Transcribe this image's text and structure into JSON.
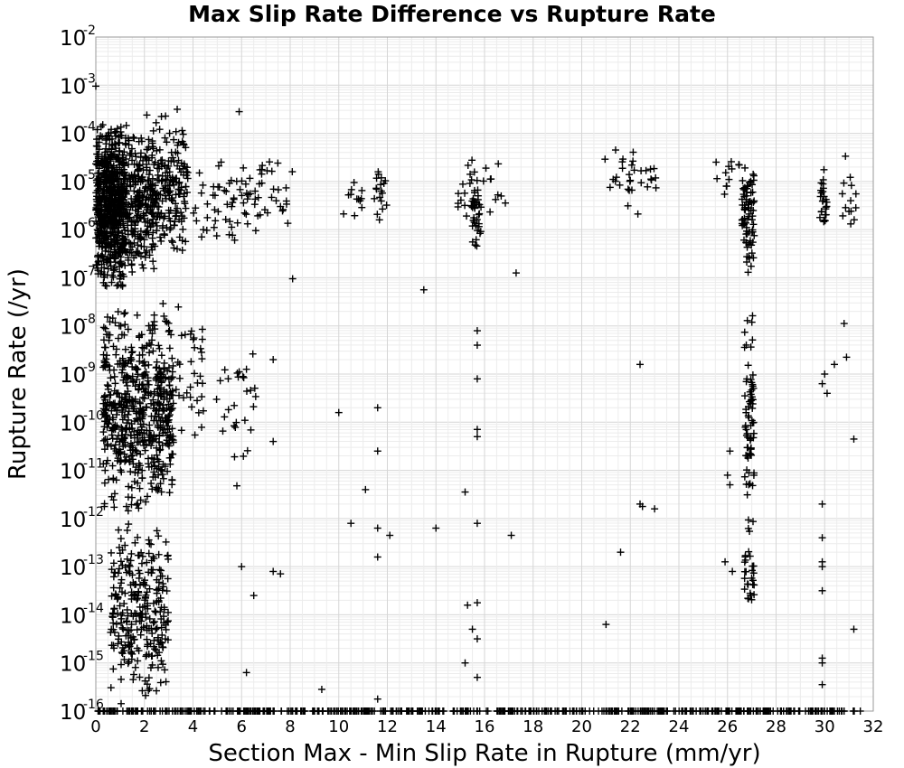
{
  "chart_data": {
    "type": "scatter",
    "title": "Max Slip Rate Difference vs Rupture Rate",
    "xlabel": "Section Max - Min Slip Rate in Rupture (mm/yr)",
    "ylabel": "Rupture Rate (/yr)",
    "xlim": [
      0,
      32
    ],
    "ylim": [
      1e-16,
      0.01
    ],
    "y_scale": "log",
    "x_ticks": [
      0,
      2,
      4,
      6,
      8,
      10,
      12,
      14,
      16,
      18,
      20,
      22,
      24,
      26,
      28,
      30,
      32
    ],
    "y_ticks": [
      {
        "base": "10",
        "exp": "-2"
      },
      {
        "base": "10",
        "exp": "-3"
      },
      {
        "base": "10",
        "exp": "-4"
      },
      {
        "base": "10",
        "exp": "-5"
      },
      {
        "base": "10",
        "exp": "-6"
      },
      {
        "base": "10",
        "exp": "-7"
      },
      {
        "base": "10",
        "exp": "-8"
      },
      {
        "base": "10",
        "exp": "-9"
      },
      {
        "base": "10",
        "exp": "-10"
      },
      {
        "base": "10",
        "exp": "-11"
      },
      {
        "base": "10",
        "exp": "-12"
      },
      {
        "base": "10",
        "exp": "-13"
      },
      {
        "base": "10",
        "exp": "-14"
      },
      {
        "base": "10",
        "exp": "-15"
      },
      {
        "base": "10",
        "exp": "-16"
      }
    ],
    "grid": true,
    "marker": "plus",
    "marker_color": "#000000",
    "clusters": [
      {
        "x": [
          0.0,
          1.2
        ],
        "log_y": [
          -7.3,
          -3.7
        ],
        "count": 650
      },
      {
        "x": [
          1.2,
          2.4
        ],
        "log_y": [
          -7.0,
          -3.8
        ],
        "count": 260
      },
      {
        "x": [
          2.4,
          3.8
        ],
        "log_y": [
          -6.6,
          -3.6
        ],
        "count": 170
      },
      {
        "x": [
          0.3,
          3.2
        ],
        "log_y": [
          -12.0,
          -7.5
        ],
        "count": 600
      },
      {
        "x": [
          0.6,
          3.0
        ],
        "log_y": [
          -15.9,
          -12.0
        ],
        "count": 280
      },
      {
        "x": [
          4.0,
          5.0
        ],
        "log_y": [
          -6.3,
          -4.7
        ],
        "count": 18
      },
      {
        "x": [
          5.0,
          6.8
        ],
        "log_y": [
          -6.3,
          -4.5
        ],
        "count": 45
      },
      {
        "x": [
          6.8,
          8.2
        ],
        "log_y": [
          -6.0,
          -4.2
        ],
        "count": 22
      },
      {
        "x": [
          3.3,
          4.6
        ],
        "log_y": [
          -11.0,
          -7.2
        ],
        "count": 35
      },
      {
        "x": [
          4.9,
          6.6
        ],
        "log_y": [
          -11.5,
          -7.8
        ],
        "count": 28
      },
      {
        "x": [
          9.9,
          11.0
        ],
        "log_y": [
          -5.9,
          -4.8
        ],
        "count": 12
      },
      {
        "x": [
          11.4,
          12.1
        ],
        "log_y": [
          -6.0,
          -4.2
        ],
        "count": 18
      },
      {
        "x": [
          14.8,
          15.6
        ],
        "log_y": [
          -5.9,
          -4.2
        ],
        "count": 18
      },
      {
        "x": [
          15.5,
          15.9
        ],
        "log_y": [
          -6.6,
          -4.7
        ],
        "count": 35
      },
      {
        "x": [
          15.9,
          16.9
        ],
        "log_y": [
          -5.8,
          -4.2
        ],
        "count": 10
      },
      {
        "x": [
          20.9,
          21.7
        ],
        "log_y": [
          -5.3,
          -4.1
        ],
        "count": 10
      },
      {
        "x": [
          21.9,
          23.1
        ],
        "log_y": [
          -5.7,
          -4.2
        ],
        "count": 22
      },
      {
        "x": [
          25.4,
          26.6
        ],
        "log_y": [
          -5.3,
          -4.3
        ],
        "count": 12
      },
      {
        "x": [
          26.6,
          27.1
        ],
        "log_y": [
          -7.0,
          -4.6
        ],
        "count": 80
      },
      {
        "x": [
          26.7,
          27.1
        ],
        "log_y": [
          -11.8,
          -7.5
        ],
        "count": 70
      },
      {
        "x": [
          26.7,
          27.1
        ],
        "log_y": [
          -14.5,
          -11.8
        ],
        "count": 30
      },
      {
        "x": [
          29.8,
          30.1
        ],
        "log_y": [
          -6.1,
          -4.7
        ],
        "count": 25
      },
      {
        "x": [
          30.7,
          31.3
        ],
        "log_y": [
          -6.4,
          -4.3
        ],
        "count": 14
      }
    ],
    "points": [
      [
        0.0,
        -3.02
      ],
      [
        3.35,
        -3.5
      ],
      [
        5.9,
        -3.55
      ],
      [
        2.1,
        -3.62
      ],
      [
        2.7,
        -3.65
      ],
      [
        17.3,
        -6.9
      ],
      [
        8.1,
        -7.02
      ],
      [
        13.5,
        -7.25
      ],
      [
        22.4,
        -8.8
      ],
      [
        10.0,
        -9.8
      ],
      [
        11.6,
        -9.7
      ],
      [
        15.7,
        -9.1
      ],
      [
        15.7,
        -8.1
      ],
      [
        15.7,
        -8.4
      ],
      [
        11.6,
        -10.6
      ],
      [
        15.7,
        -10.3
      ],
      [
        15.7,
        -10.15
      ],
      [
        11.1,
        -11.4
      ],
      [
        15.2,
        -11.45
      ],
      [
        10.5,
        -12.1
      ],
      [
        11.6,
        -12.2
      ],
      [
        12.1,
        -12.35
      ],
      [
        14.0,
        -12.2
      ],
      [
        15.7,
        -12.1
      ],
      [
        17.1,
        -12.35
      ],
      [
        22.4,
        -11.7
      ],
      [
        22.5,
        -11.75
      ],
      [
        23.0,
        -11.8
      ],
      [
        21.6,
        -12.7
      ],
      [
        11.6,
        -12.8
      ],
      [
        15.3,
        -13.8
      ],
      [
        15.7,
        -13.75
      ],
      [
        15.5,
        -14.3
      ],
      [
        15.7,
        -14.5
      ],
      [
        21.0,
        -14.2
      ],
      [
        15.2,
        -15.0
      ],
      [
        15.7,
        -15.3
      ],
      [
        11.6,
        -15.75
      ],
      [
        11.6,
        -16.25
      ],
      [
        9.3,
        -15.55
      ],
      [
        6.2,
        -15.2
      ],
      [
        5.0,
        -16.3
      ],
      [
        5.8,
        -16.1
      ],
      [
        7.3,
        -13.1
      ],
      [
        7.6,
        -13.15
      ],
      [
        6.5,
        -13.6
      ],
      [
        6.0,
        -13.0
      ],
      [
        7.3,
        -10.4
      ],
      [
        7.3,
        -8.7
      ],
      [
        6.2,
        -8.9
      ],
      [
        26.1,
        -10.6
      ],
      [
        26.1,
        -11.3
      ],
      [
        26.0,
        -11.1
      ],
      [
        25.9,
        -12.9
      ],
      [
        26.2,
        -13.1
      ],
      [
        26.1,
        -16.6
      ],
      [
        26.4,
        -16.65
      ],
      [
        29.9,
        -11.7
      ],
      [
        29.9,
        -12.4
      ],
      [
        29.9,
        -12.9
      ],
      [
        29.9,
        -13.5
      ],
      [
        29.9,
        -13.0
      ],
      [
        29.9,
        -14.9
      ],
      [
        29.9,
        -15.0
      ],
      [
        29.9,
        -15.45
      ],
      [
        29.9,
        -16.45
      ],
      [
        29.9,
        -16.5
      ],
      [
        30.4,
        -8.8
      ],
      [
        30.0,
        -9.0
      ],
      [
        29.9,
        -9.2
      ],
      [
        30.1,
        -9.4
      ],
      [
        30.9,
        -8.65
      ],
      [
        30.8,
        -7.95
      ],
      [
        31.2,
        -10.35
      ],
      [
        31.2,
        -14.3
      ]
    ],
    "baseline": {
      "log_y": -16.0,
      "x": [
        0.0,
        31.6
      ],
      "count": 520
    }
  }
}
